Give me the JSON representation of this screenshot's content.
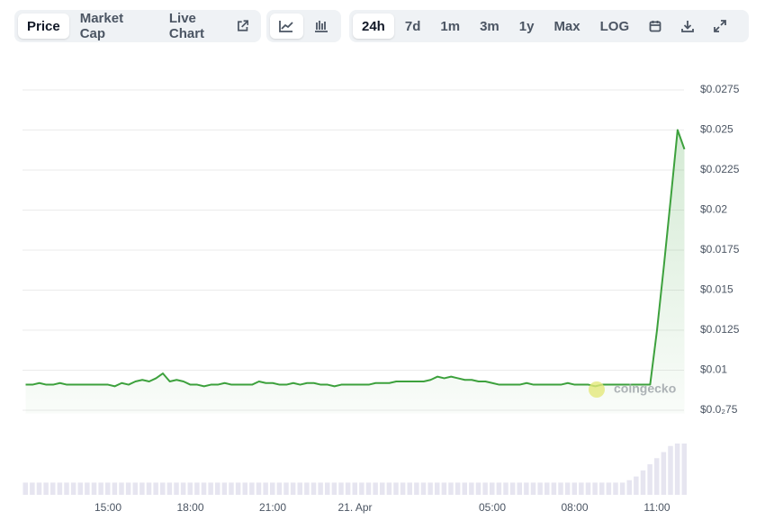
{
  "toolbar": {
    "views": [
      "Price",
      "Market Cap",
      "Live Chart"
    ],
    "ranges": [
      "24h",
      "7d",
      "1m",
      "3m",
      "1y",
      "Max",
      "LOG"
    ]
  },
  "chart_data": {
    "type": "area",
    "categories": [
      null,
      null,
      null,
      null,
      null,
      null,
      null,
      null,
      null,
      null,
      null,
      null,
      "15:00",
      null,
      null,
      null,
      null,
      null,
      null,
      null,
      null,
      null,
      null,
      null,
      "18:00",
      null,
      null,
      null,
      null,
      null,
      null,
      null,
      null,
      null,
      null,
      null,
      "21:00",
      null,
      null,
      null,
      null,
      null,
      null,
      null,
      null,
      null,
      null,
      null,
      "21. Apr",
      null,
      null,
      null,
      null,
      null,
      null,
      null,
      null,
      null,
      null,
      null,
      null,
      null,
      null,
      null,
      null,
      null,
      null,
      null,
      "05:00",
      null,
      null,
      null,
      null,
      null,
      null,
      null,
      null,
      null,
      null,
      null,
      "08:00",
      null,
      null,
      null,
      null,
      null,
      null,
      null,
      null,
      null,
      null,
      null,
      "11:00",
      null,
      null,
      null,
      null
    ],
    "values": [
      0.0091,
      0.0091,
      0.0092,
      0.0091,
      0.0091,
      0.0092,
      0.0091,
      0.0091,
      0.0091,
      0.0091,
      0.0091,
      0.0091,
      0.0091,
      0.009,
      0.0092,
      0.0091,
      0.0093,
      0.0094,
      0.0093,
      0.0095,
      0.0098,
      0.0093,
      0.0094,
      0.0093,
      0.0091,
      0.0091,
      0.009,
      0.0091,
      0.0091,
      0.0092,
      0.0091,
      0.0091,
      0.0091,
      0.0091,
      0.0093,
      0.0092,
      0.0092,
      0.0091,
      0.0091,
      0.0092,
      0.0091,
      0.0092,
      0.0092,
      0.0091,
      0.0091,
      0.009,
      0.0091,
      0.0091,
      0.0091,
      0.0091,
      0.0091,
      0.0092,
      0.0092,
      0.0092,
      0.0093,
      0.0093,
      0.0093,
      0.0093,
      0.0093,
      0.0094,
      0.0096,
      0.0095,
      0.0096,
      0.0095,
      0.0094,
      0.0094,
      0.0093,
      0.0093,
      0.0092,
      0.0091,
      0.0091,
      0.0091,
      0.0091,
      0.0092,
      0.0091,
      0.0091,
      0.0091,
      0.0091,
      0.0091,
      0.0092,
      0.0091,
      0.0091,
      0.0091,
      0.009,
      0.0091,
      0.0091,
      0.0091,
      0.0091,
      0.0091,
      0.0091,
      0.0091,
      0.0091,
      0.0125,
      0.0165,
      0.0207,
      0.025,
      0.0238
    ],
    "volume": [
      1,
      1,
      1,
      1,
      1,
      1,
      1,
      1,
      1,
      1,
      1,
      1,
      1,
      1,
      1,
      1,
      1,
      1,
      1,
      1,
      1,
      1,
      1,
      1,
      1,
      1,
      1,
      1,
      1,
      1,
      1,
      1,
      1,
      1,
      1,
      1,
      1,
      1,
      1,
      1,
      1,
      1,
      1,
      1,
      1,
      1,
      1,
      1,
      1,
      1,
      1,
      1,
      1,
      1,
      1,
      1,
      1,
      1,
      1,
      1,
      1,
      1,
      1,
      1,
      1,
      1,
      1,
      1,
      1,
      1,
      1,
      1,
      1,
      1,
      1,
      1,
      1,
      1,
      1,
      1,
      1,
      1,
      1,
      1,
      1,
      1,
      1,
      1,
      1.2,
      1.5,
      2,
      2.5,
      3,
      3.5,
      4,
      4.2,
      4.2
    ],
    "vlim": [
      0,
      4.2
    ],
    "color": "#3da13d",
    "volume_color": "#e6e5f0",
    "ylim": [
      0.0073,
      0.0275
    ],
    "yticks": [
      {
        "value": 0.0075,
        "label": "$0.0₂75"
      },
      {
        "value": 0.01,
        "label": "$0.01"
      },
      {
        "value": 0.0125,
        "label": "$0.0125"
      },
      {
        "value": 0.015,
        "label": "$0.015"
      },
      {
        "value": 0.0175,
        "label": "$0.0175"
      },
      {
        "value": 0.02,
        "label": "$0.02"
      },
      {
        "value": 0.0225,
        "label": "$0.0225"
      },
      {
        "value": 0.025,
        "label": "$0.025"
      },
      {
        "value": 0.0275,
        "label": "$0.0275"
      }
    ],
    "grid": true,
    "watermark": "coingecko"
  }
}
